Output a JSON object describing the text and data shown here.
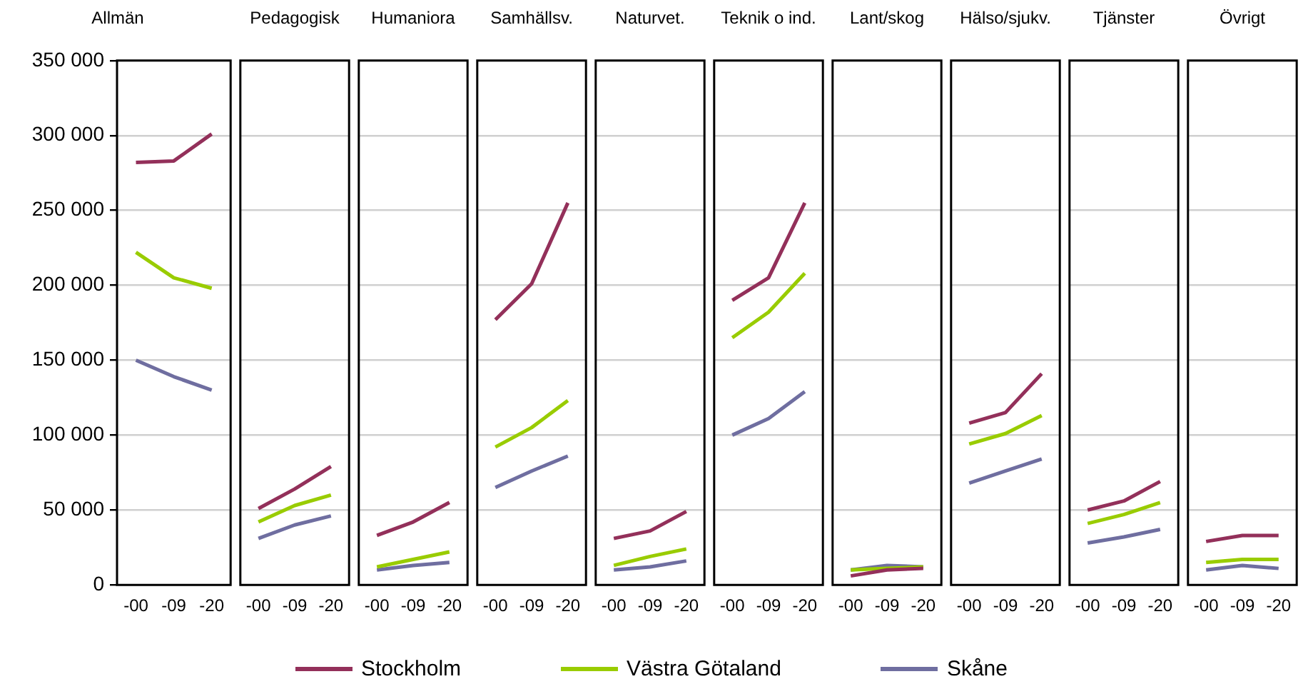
{
  "chart_data": [
    {
      "type": "line",
      "title": "Allmän",
      "categories": [
        "-00",
        "-09",
        "-20"
      ],
      "legend": "bottom",
      "marker": "none",
      "line_style": "solid",
      "grid": "y",
      "ylim": [
        0,
        350000
      ],
      "yticks": [
        0,
        {
          "value": 50000,
          "label": "50 000"
        },
        {
          "value": 100000,
          "label": "100 000"
        },
        {
          "value": 150000,
          "label": "150 000"
        },
        {
          "value": 200000,
          "label": "200 000"
        },
        {
          "value": 250000,
          "label": "250 000"
        },
        {
          "value": 300000,
          "label": "300 000"
        },
        {
          "value": 350000,
          "label": "350 000"
        }
      ],
      "series": [
        {
          "name": "Stockholm",
          "color": "#93305a",
          "values": [
            282000,
            283000,
            301000
          ]
        },
        {
          "name": "Västra Götaland",
          "color": "#99cc00",
          "values": [
            222000,
            205000,
            198000
          ]
        },
        {
          "name": "Skåne",
          "color": "#6f6ea0",
          "values": [
            150000,
            139000,
            130000
          ]
        }
      ]
    },
    {
      "type": "line",
      "title": "Pedagogisk",
      "categories": [
        "-00",
        "-09",
        "-20"
      ],
      "marker": "none",
      "line_style": "solid",
      "grid": "y",
      "tick_labels": "x",
      "ylim": [
        0,
        350000
      ],
      "yticks": [
        0,
        50000,
        100000,
        150000,
        200000,
        250000,
        300000,
        350000
      ],
      "series": [
        {
          "color": "#93305a",
          "values": [
            51000,
            64000,
            79000
          ]
        },
        {
          "color": "#99cc00",
          "values": [
            42000,
            53000,
            60000
          ]
        },
        {
          "color": "#6f6ea0",
          "values": [
            31000,
            40000,
            46000
          ]
        }
      ]
    },
    {
      "type": "line",
      "title": "Humaniora",
      "categories": [
        "-00",
        "-09",
        "-20"
      ],
      "marker": "none",
      "line_style": "solid",
      "grid": "y",
      "tick_labels": "x",
      "ylim": [
        0,
        350000
      ],
      "yticks": [
        0,
        50000,
        100000,
        150000,
        200000,
        250000,
        300000,
        350000
      ],
      "series": [
        {
          "color": "#93305a",
          "values": [
            33000,
            42000,
            55000
          ]
        },
        {
          "color": "#99cc00",
          "values": [
            12000,
            17000,
            22000
          ]
        },
        {
          "color": "#6f6ea0",
          "values": [
            10000,
            13000,
            15000
          ]
        }
      ]
    },
    {
      "type": "line",
      "title": "Samhällsv.",
      "categories": [
        "-00",
        "-09",
        "-20"
      ],
      "marker": "none",
      "line_style": "solid",
      "grid": "y",
      "tick_labels": "x",
      "ylim": [
        0,
        350000
      ],
      "yticks": [
        0,
        50000,
        100000,
        150000,
        200000,
        250000,
        300000,
        350000
      ],
      "series": [
        {
          "color": "#93305a",
          "values": [
            177000,
            201000,
            255000
          ]
        },
        {
          "color": "#99cc00",
          "values": [
            92000,
            105000,
            123000
          ]
        },
        {
          "color": "#6f6ea0",
          "values": [
            65000,
            76000,
            86000
          ]
        }
      ]
    },
    {
      "type": "line",
      "title": "Naturvet.",
      "categories": [
        "-00",
        "-09",
        "-20"
      ],
      "marker": "none",
      "line_style": "solid",
      "grid": "y",
      "tick_labels": "x",
      "ylim": [
        0,
        350000
      ],
      "yticks": [
        0,
        50000,
        100000,
        150000,
        200000,
        250000,
        300000,
        350000
      ],
      "series": [
        {
          "color": "#93305a",
          "values": [
            31000,
            36000,
            49000
          ]
        },
        {
          "color": "#99cc00",
          "values": [
            13000,
            19000,
            24000
          ]
        },
        {
          "color": "#6f6ea0",
          "values": [
            10000,
            12000,
            16000
          ]
        }
      ]
    },
    {
      "type": "line",
      "title": "Teknik o ind.",
      "categories": [
        "-00",
        "-09",
        "-20"
      ],
      "marker": "none",
      "line_style": "solid",
      "grid": "y",
      "tick_labels": "x",
      "ylim": [
        0,
        350000
      ],
      "yticks": [
        0,
        50000,
        100000,
        150000,
        200000,
        250000,
        300000,
        350000
      ],
      "series": [
        {
          "color": "#93305a",
          "values": [
            190000,
            205000,
            255000
          ]
        },
        {
          "color": "#99cc00",
          "values": [
            165000,
            182000,
            208000
          ]
        },
        {
          "color": "#6f6ea0",
          "values": [
            100000,
            111000,
            129000
          ]
        }
      ]
    },
    {
      "type": "line",
      "title": "Lant/skog",
      "categories": [
        "-00",
        "-09",
        "-20"
      ],
      "marker": "none",
      "line_style": "solid",
      "grid": "y",
      "tick_labels": "x",
      "ylim": [
        0,
        350000
      ],
      "yticks": [
        0,
        50000,
        100000,
        150000,
        200000,
        250000,
        300000,
        350000
      ],
      "series": [
        {
          "color": "#93305a",
          "values": [
            6000,
            10000,
            11000
          ]
        },
        {
          "color": "#99cc00",
          "values": [
            10000,
            11000,
            12000
          ]
        },
        {
          "color": "#6f6ea0",
          "values": [
            10000,
            13000,
            12000
          ]
        }
      ]
    },
    {
      "type": "line",
      "title": "Hälso/sjukv.",
      "categories": [
        "-00",
        "-09",
        "-20"
      ],
      "marker": "none",
      "line_style": "solid",
      "grid": "y",
      "tick_labels": "x",
      "ylim": [
        0,
        350000
      ],
      "yticks": [
        0,
        50000,
        100000,
        150000,
        200000,
        250000,
        300000,
        350000
      ],
      "series": [
        {
          "color": "#93305a",
          "values": [
            108000,
            115000,
            141000
          ]
        },
        {
          "color": "#99cc00",
          "values": [
            94000,
            101000,
            113000
          ]
        },
        {
          "color": "#6f6ea0",
          "values": [
            68000,
            76000,
            84000
          ]
        }
      ]
    },
    {
      "type": "line",
      "title": "Tjänster",
      "categories": [
        "-00",
        "-09",
        "-20"
      ],
      "marker": "none",
      "line_style": "solid",
      "grid": "y",
      "tick_labels": "x",
      "ylim": [
        0,
        350000
      ],
      "yticks": [
        0,
        50000,
        100000,
        150000,
        200000,
        250000,
        300000,
        350000
      ],
      "series": [
        {
          "color": "#93305a",
          "values": [
            50000,
            56000,
            69000
          ]
        },
        {
          "color": "#99cc00",
          "values": [
            41000,
            47000,
            55000
          ]
        },
        {
          "color": "#6f6ea0",
          "values": [
            28000,
            32000,
            37000
          ]
        }
      ]
    },
    {
      "type": "line",
      "title": "Övrigt",
      "categories": [
        "-00",
        "-09",
        "-20"
      ],
      "marker": "none",
      "line_style": "solid",
      "grid": "y",
      "tick_labels": "x",
      "ylim": [
        0,
        350000
      ],
      "yticks": [
        0,
        50000,
        100000,
        150000,
        200000,
        250000,
        300000,
        350000
      ],
      "series": [
        {
          "color": "#93305a",
          "values": [
            29000,
            33000,
            33000
          ]
        },
        {
          "color": "#99cc00",
          "values": [
            15000,
            17000,
            17000
          ]
        },
        {
          "color": "#6f6ea0",
          "values": [
            10000,
            13000,
            11000
          ]
        }
      ]
    }
  ]
}
